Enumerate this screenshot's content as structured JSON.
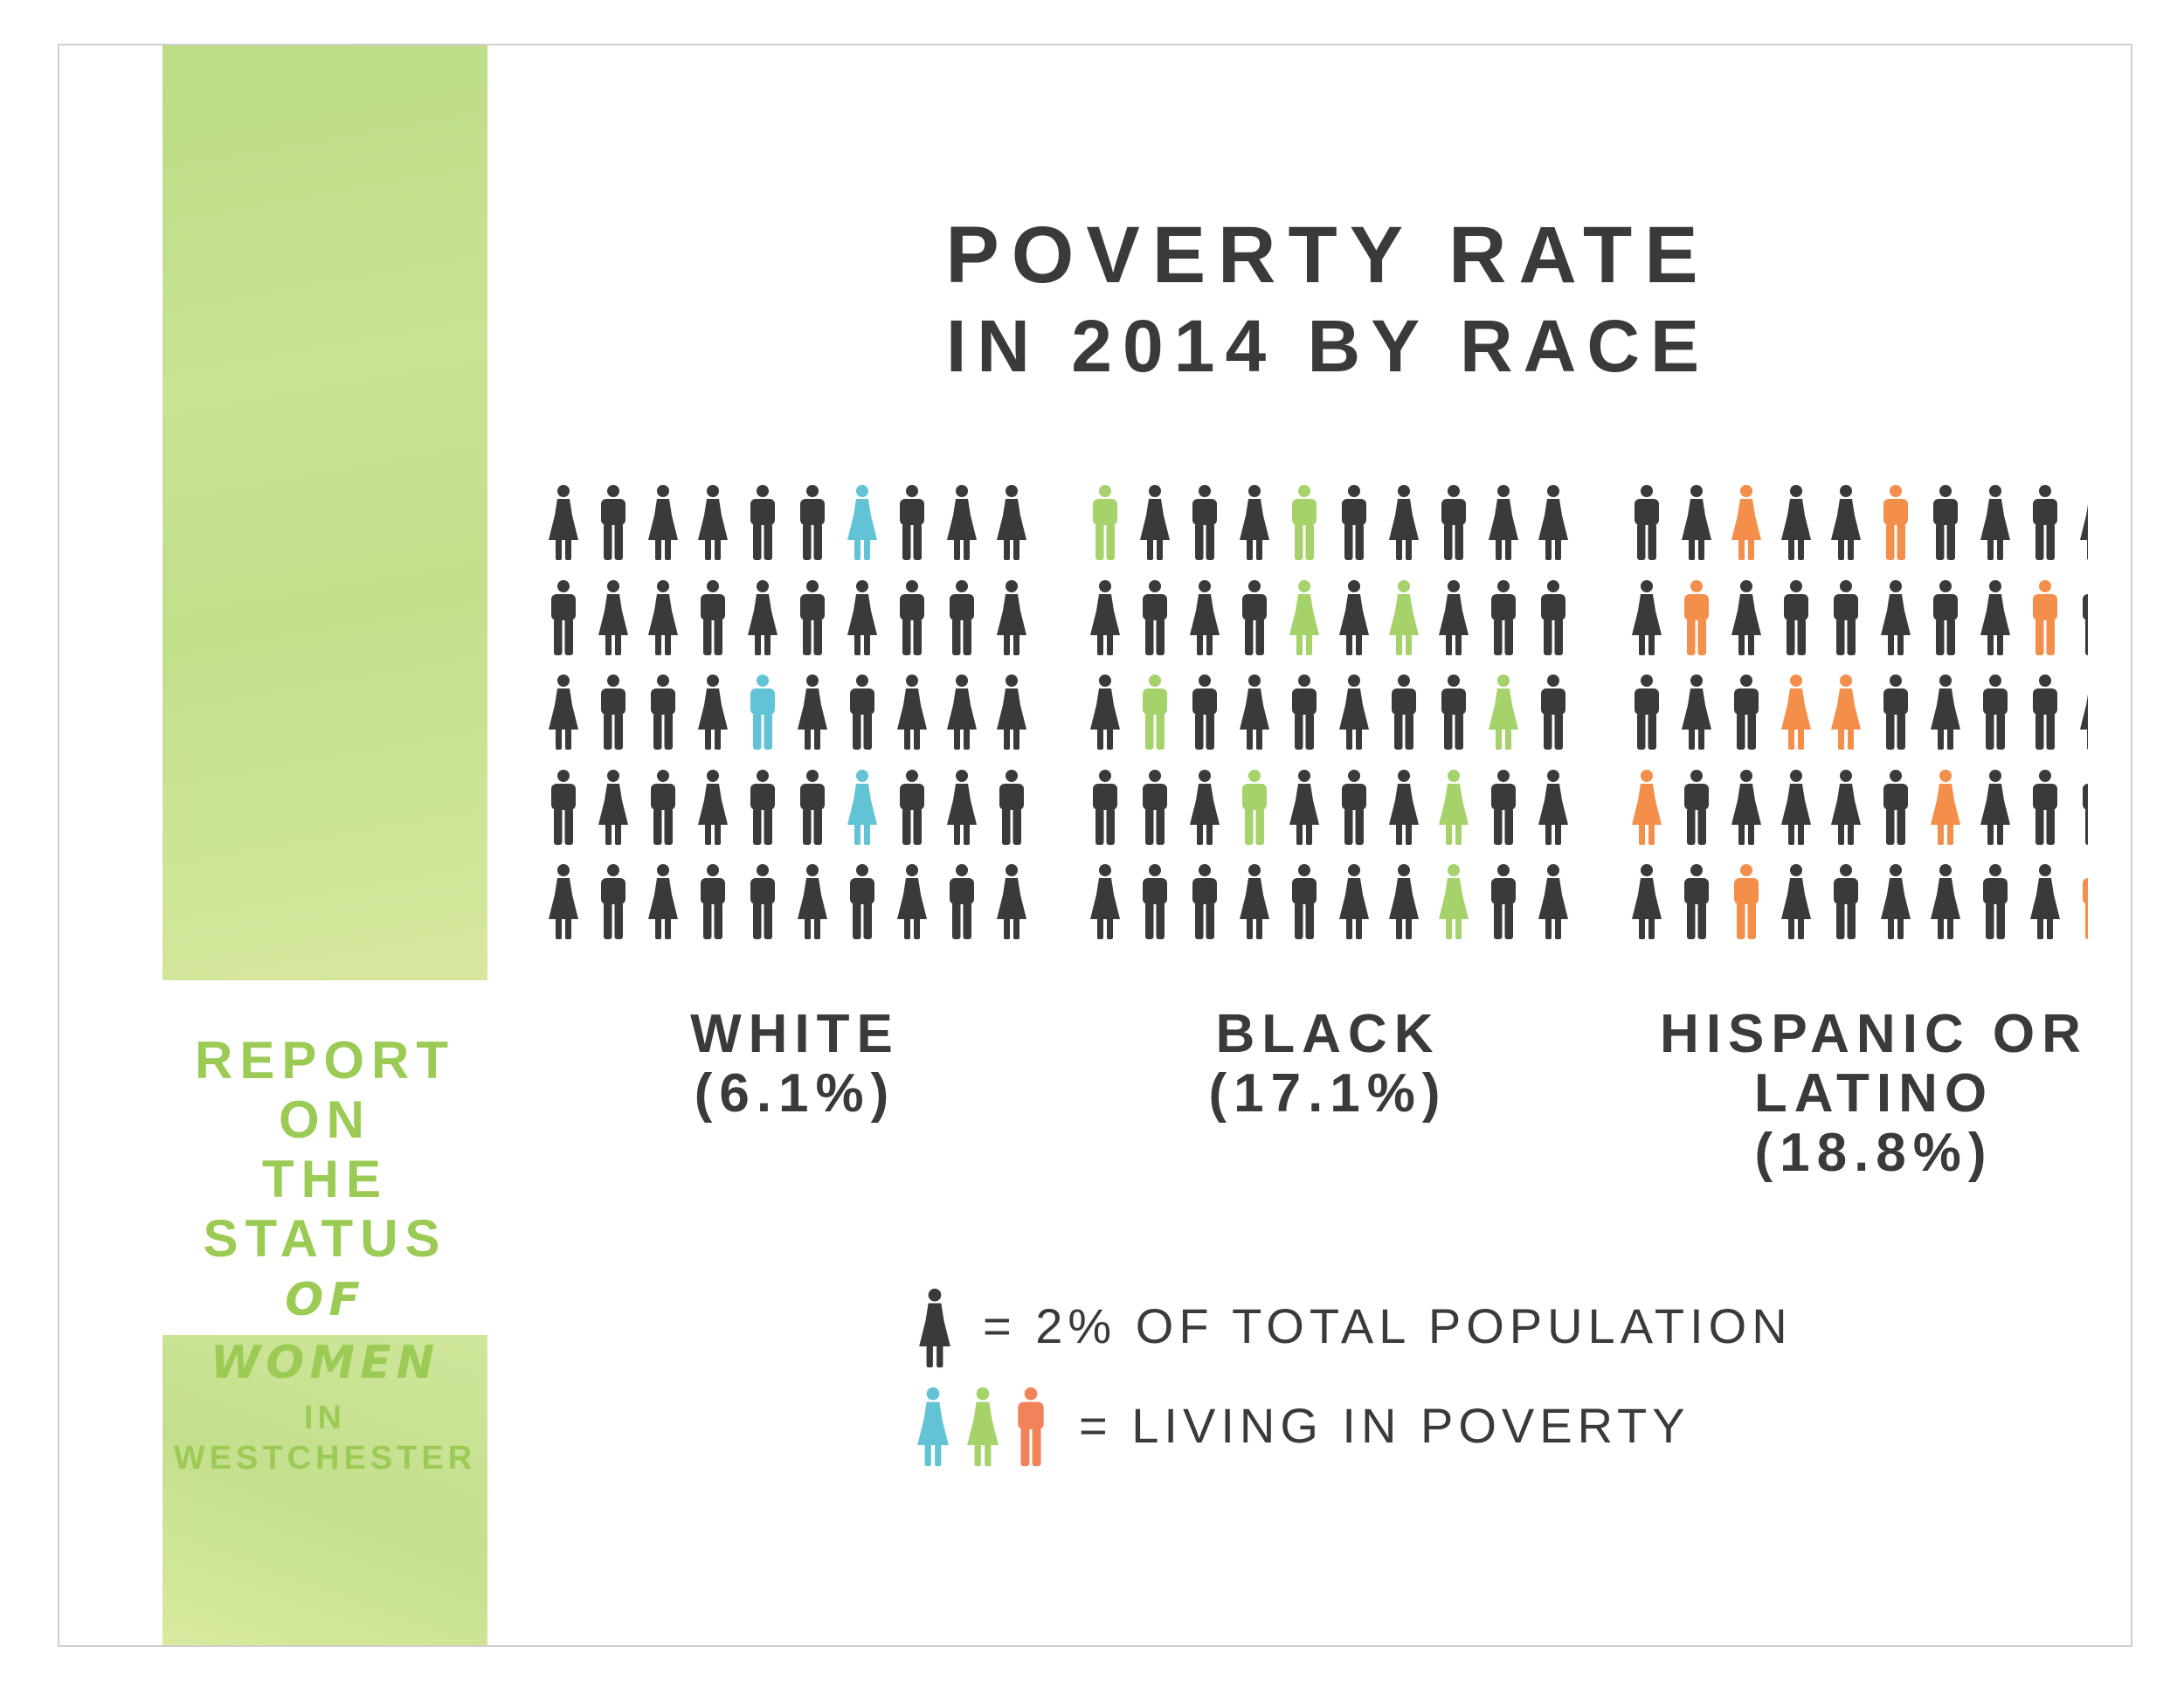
{
  "sidebar": {
    "line1": "REPORT ON",
    "line2": "THE STATUS",
    "line3": "OF WOMEN",
    "line4": "IN WESTCHESTER",
    "color": "#9ccb55"
  },
  "chart_data": {
    "type": "pictogram",
    "title": "POVERTY RATE",
    "subtitle": "IN 2014 BY RACE",
    "grid": {
      "rows": 5,
      "cols": 10
    },
    "unit_value_percent": 2,
    "groups": [
      {
        "label_line1": "WHITE",
        "label_line2": "(6.1%)",
        "poverty_rate_percent": 6.1,
        "highlight_color": "#63c3d6",
        "highlighted_icons": 3
      },
      {
        "label_line1": "BLACK",
        "label_line2": "(17.1%)",
        "poverty_rate_percent": 17.1,
        "highlight_color": "#a6d26a",
        "highlighted_icons": 9
      },
      {
        "label_line1": "HISPANIC OR",
        "label_line2": "LATINO (18.8%)",
        "poverty_rate_percent": 18.8,
        "highlight_color": "#f48e4b",
        "highlighted_icons": 10
      }
    ],
    "legend": [
      {
        "text": "= 2% OF TOTAL POPULATION",
        "icon": "person-icon",
        "color": "#3a3a3a"
      },
      {
        "text": "= LIVING IN POVERTY",
        "icon": "person-icon-set",
        "colors": [
          "#63c3d6",
          "#a6d26a",
          "#f0835a"
        ]
      }
    ],
    "base_color": "#3a3a3a"
  }
}
